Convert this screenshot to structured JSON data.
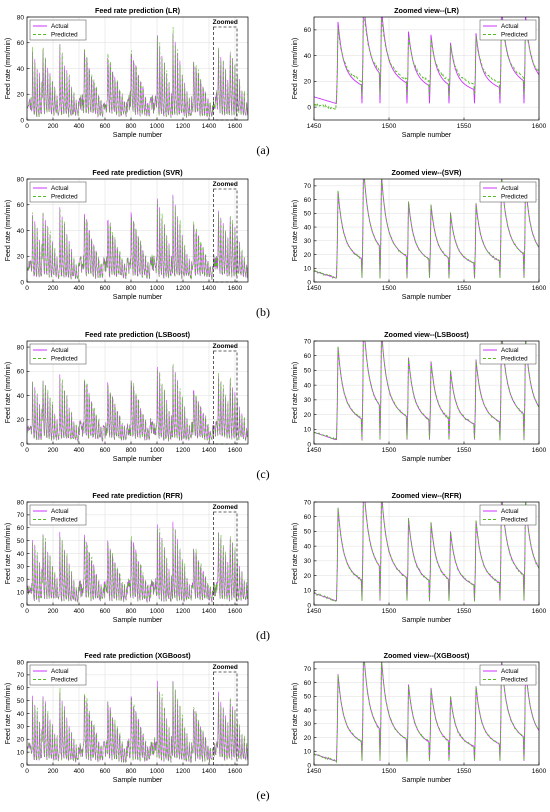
{
  "colors": {
    "actual": "#cc33ff",
    "predicted": "#55bb22",
    "axis": "#000000",
    "grid": "#dddddd",
    "zoom_box": "#333333"
  },
  "rows": [
    {
      "label": "(a)",
      "model": "LR"
    },
    {
      "label": "(b)",
      "model": "SVR"
    },
    {
      "label": "(c)",
      "model": "LSBoost"
    },
    {
      "label": "(d)",
      "model": "RFR"
    },
    {
      "label": "(e)",
      "model": "XGBoost"
    }
  ],
  "chart_data": [
    {
      "panel": "a-full",
      "type": "line",
      "title": "Feed rate prediction (LR)",
      "xlabel": "Sample number",
      "ylabel": "Feed rate (mm/min)",
      "xlim": [
        0,
        1700
      ],
      "ylim": [
        0,
        80
      ],
      "xticks": [
        "0",
        "200",
        "400",
        "600",
        "800",
        "1000",
        "1200",
        "1400",
        "1600"
      ],
      "yticks": [
        "0",
        "20",
        "40",
        "60",
        "80"
      ],
      "grid": true,
      "legend": [
        "Actual",
        "Predicted"
      ],
      "legend_position": "top-left",
      "annotation": "Zoomed",
      "zoom_range": [
        1450,
        1600
      ],
      "series": [
        {
          "name": "Actual"
        },
        {
          "name": "Predicted"
        }
      ]
    },
    {
      "panel": "a-zoom",
      "type": "line",
      "title": "Zoomed view--(LR)",
      "xlabel": "Sample number",
      "ylabel": "Feed rate (mm/min)",
      "xlim": [
        1450,
        1600
      ],
      "ylim": [
        -10,
        70
      ],
      "xticks": [
        "1450",
        "1500",
        "1550",
        "1600"
      ],
      "yticks": [
        "0",
        "20",
        "40",
        "60"
      ],
      "grid": true,
      "legend": [
        "Actual",
        "Predicted"
      ],
      "legend_position": "top-right",
      "series": [
        {
          "name": "Actual"
        },
        {
          "name": "Predicted"
        }
      ]
    },
    {
      "panel": "b-full",
      "type": "line",
      "title": "Feed rate prediction (SVR)",
      "xlabel": "Sample number",
      "ylabel": "Feed rate (mm/min)",
      "xlim": [
        0,
        1700
      ],
      "ylim": [
        0,
        80
      ],
      "xticks": [
        "0",
        "200",
        "400",
        "600",
        "800",
        "1000",
        "1200",
        "1400",
        "1600"
      ],
      "yticks": [
        "0",
        "20",
        "40",
        "60",
        "80"
      ],
      "grid": true,
      "legend": [
        "Actual",
        "Predicted"
      ],
      "legend_position": "top-left",
      "annotation": "Zoomed",
      "zoom_range": [
        1450,
        1600
      ],
      "series": [
        {
          "name": "Actual"
        },
        {
          "name": "Predicted"
        }
      ]
    },
    {
      "panel": "b-zoom",
      "type": "line",
      "title": "Zoomed view--(SVR)",
      "xlabel": "Sample number",
      "ylabel": "Feed rate (mm/min)",
      "xlim": [
        1450,
        1600
      ],
      "ylim": [
        0,
        75
      ],
      "xticks": [
        "1450",
        "1500",
        "1550",
        "1600"
      ],
      "yticks": [
        "0",
        "10",
        "20",
        "30",
        "40",
        "50",
        "60",
        "70"
      ],
      "grid": true,
      "legend": [
        "Actual",
        "Predicted"
      ],
      "legend_position": "top-right",
      "series": [
        {
          "name": "Actual"
        },
        {
          "name": "Predicted"
        }
      ]
    },
    {
      "panel": "c-full",
      "type": "line",
      "title": "Feed rate prediction (LSBoost)",
      "xlabel": "Sample number",
      "ylabel": "Feed rate (mm/min)",
      "xlim": [
        0,
        1700
      ],
      "ylim": [
        0,
        85
      ],
      "xticks": [
        "0",
        "200",
        "400",
        "600",
        "800",
        "1000",
        "1200",
        "1400",
        "1600"
      ],
      "yticks": [
        "0",
        "20",
        "40",
        "60",
        "80"
      ],
      "grid": true,
      "legend": [
        "Actual",
        "Predicted"
      ],
      "legend_position": "top-left",
      "annotation": "Zoomed",
      "zoom_range": [
        1450,
        1600
      ],
      "series": [
        {
          "name": "Actual"
        },
        {
          "name": "Predicted"
        }
      ]
    },
    {
      "panel": "c-zoom",
      "type": "line",
      "title": "Zoomed view--(LSBoost)",
      "xlabel": "Sample number",
      "ylabel": "Feed rate (mm/min)",
      "xlim": [
        1450,
        1600
      ],
      "ylim": [
        0,
        70
      ],
      "xticks": [
        "1450",
        "1500",
        "1550",
        "1600"
      ],
      "yticks": [
        "0",
        "10",
        "20",
        "30",
        "40",
        "50",
        "60",
        "70"
      ],
      "grid": true,
      "legend": [
        "Actual",
        "Predicted"
      ],
      "legend_position": "top-right",
      "series": [
        {
          "name": "Actual"
        },
        {
          "name": "Predicted"
        }
      ]
    },
    {
      "panel": "d-full",
      "type": "line",
      "title": "Feed rate prediction (RFR)",
      "xlabel": "Sample number",
      "ylabel": "Feed rate (mm/min)",
      "xlim": [
        0,
        1700
      ],
      "ylim": [
        0,
        80
      ],
      "xticks": [
        "0",
        "200",
        "400",
        "600",
        "800",
        "1000",
        "1200",
        "1400",
        "1600"
      ],
      "yticks": [
        "0",
        "10",
        "20",
        "30",
        "40",
        "50",
        "60",
        "70",
        "80"
      ],
      "grid": true,
      "legend": [
        "Actual",
        "Predicted"
      ],
      "legend_position": "top-left",
      "annotation": "Zoomed",
      "zoom_range": [
        1450,
        1600
      ],
      "series": [
        {
          "name": "Actual"
        },
        {
          "name": "Predicted"
        }
      ]
    },
    {
      "panel": "d-zoom",
      "type": "line",
      "title": "Zoomed view--(RFR)",
      "xlabel": "Sample number",
      "ylabel": "Feed rate (mm/min)",
      "xlim": [
        1450,
        1600
      ],
      "ylim": [
        0,
        70
      ],
      "xticks": [
        "1450",
        "1500",
        "1550",
        "1600"
      ],
      "yticks": [
        "0",
        "10",
        "20",
        "30",
        "40",
        "50",
        "60",
        "70"
      ],
      "grid": true,
      "legend": [
        "Actual",
        "Predicted"
      ],
      "legend_position": "top-right",
      "series": [
        {
          "name": "Actual"
        },
        {
          "name": "Predicted"
        }
      ]
    },
    {
      "panel": "e-full",
      "type": "line",
      "title": "Feed rate prediction (XGBoost)",
      "xlabel": "Sample number",
      "ylabel": "Feed rate (mm/min)",
      "xlim": [
        0,
        1700
      ],
      "ylim": [
        0,
        80
      ],
      "xticks": [
        "0",
        "200",
        "400",
        "600",
        "800",
        "1000",
        "1200",
        "1400",
        "1600"
      ],
      "yticks": [
        "0",
        "10",
        "20",
        "30",
        "40",
        "50",
        "60",
        "70",
        "80"
      ],
      "grid": true,
      "legend": [
        "Actual",
        "Predicted"
      ],
      "legend_position": "top-left",
      "annotation": "Zoomed",
      "zoom_range": [
        1450,
        1600
      ],
      "series": [
        {
          "name": "Actual"
        },
        {
          "name": "Predicted"
        }
      ]
    },
    {
      "panel": "e-zoom",
      "type": "line",
      "title": "Zoomed view--(XGBoost)",
      "xlabel": "Sample number",
      "ylabel": "Feed rate (mm/min)",
      "xlim": [
        1450,
        1600
      ],
      "ylim": [
        0,
        75
      ],
      "xticks": [
        "1450",
        "1500",
        "1550",
        "1600"
      ],
      "yticks": [
        "0",
        "10",
        "20",
        "30",
        "40",
        "50",
        "60",
        "70"
      ],
      "grid": true,
      "legend": [
        "Actual",
        "Predicted"
      ],
      "legend_position": "top-right",
      "series": [
        {
          "name": "Actual"
        },
        {
          "name": "Predicted"
        }
      ]
    }
  ]
}
